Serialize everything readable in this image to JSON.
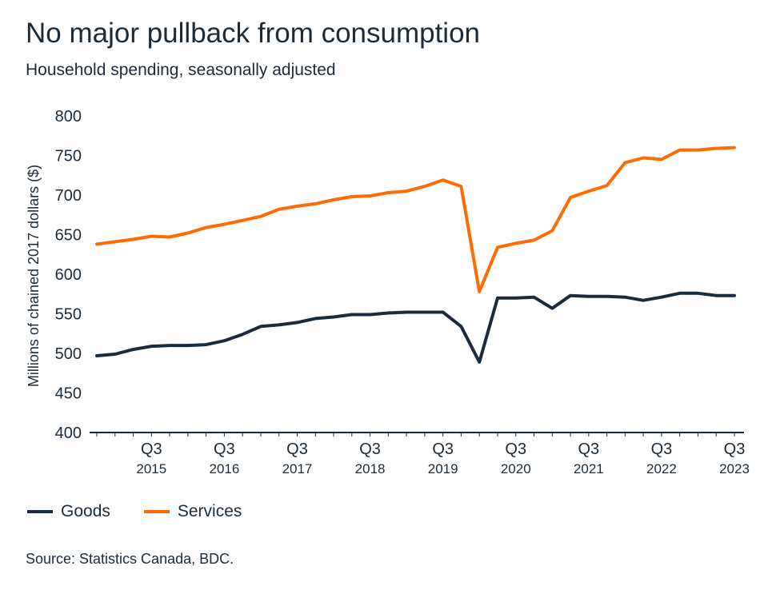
{
  "title": "No major pullback from consumption",
  "subtitle": "Household spending, seasonally adjusted",
  "source": "Source: Statistics Canada, BDC.",
  "colors": {
    "goods": "#1c2b39",
    "services": "#ff6b00",
    "axis": "#1c2b39"
  },
  "chart_data": {
    "type": "line",
    "ylabel": "Millions of chained 2017 dollars ($)",
    "xlabel": "",
    "ylim": [
      400,
      800
    ],
    "yticks": [
      400,
      450,
      500,
      550,
      600,
      650,
      700,
      750,
      800
    ],
    "grid": false,
    "legend_position": "bottom-left",
    "x": [
      "2014 Q4",
      "2015 Q1",
      "2015 Q2",
      "2015 Q3",
      "2015 Q4",
      "2016 Q1",
      "2016 Q2",
      "2016 Q3",
      "2016 Q4",
      "2017 Q1",
      "2017 Q2",
      "2017 Q3",
      "2017 Q4",
      "2018 Q1",
      "2018 Q2",
      "2018 Q3",
      "2018 Q4",
      "2019 Q1",
      "2019 Q2",
      "2019 Q3",
      "2019 Q4",
      "2020 Q1",
      "2020 Q2",
      "2020 Q3",
      "2020 Q4",
      "2021 Q1",
      "2021 Q2",
      "2021 Q3",
      "2021 Q4",
      "2022 Q1",
      "2022 Q2",
      "2022 Q3",
      "2022 Q4",
      "2023 Q1",
      "2023 Q2",
      "2023 Q3"
    ],
    "x_tick_labels": [
      {
        "quarter": "Q3",
        "year": "2015",
        "x": "2015 Q3"
      },
      {
        "quarter": "Q3",
        "year": "2016",
        "x": "2016 Q3"
      },
      {
        "quarter": "Q3",
        "year": "2017",
        "x": "2017 Q3"
      },
      {
        "quarter": "Q3",
        "year": "2018",
        "x": "2018 Q3"
      },
      {
        "quarter": "Q3",
        "year": "2019",
        "x": "2019 Q3"
      },
      {
        "quarter": "Q3",
        "year": "2020",
        "x": "2020 Q3"
      },
      {
        "quarter": "Q3",
        "year": "2021",
        "x": "2021 Q3"
      },
      {
        "quarter": "Q3",
        "year": "2022",
        "x": "2022 Q3"
      },
      {
        "quarter": "Q3",
        "year": "2023",
        "x": "2023 Q3"
      }
    ],
    "series": [
      {
        "name": "Goods",
        "values": [
          497,
          499,
          505,
          509,
          510,
          510,
          511,
          516,
          524,
          534,
          536,
          539,
          544,
          546,
          549,
          549,
          551,
          552,
          552,
          552,
          534,
          489,
          570,
          570,
          571,
          557,
          573,
          572,
          572,
          571,
          567,
          571,
          576,
          576,
          573,
          573
        ]
      },
      {
        "name": "Services",
        "values": [
          638,
          641,
          644,
          648,
          647,
          652,
          659,
          663,
          668,
          673,
          682,
          686,
          689,
          694,
          698,
          699,
          703,
          705,
          711,
          719,
          711,
          578,
          634,
          639,
          643,
          655,
          697,
          705,
          712,
          741,
          747,
          745,
          757,
          757,
          759,
          760
        ]
      }
    ]
  }
}
